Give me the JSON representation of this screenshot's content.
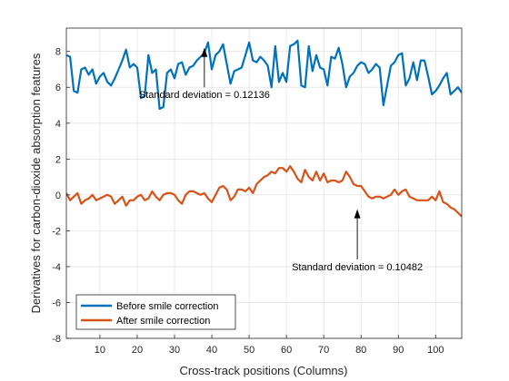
{
  "chart_data": {
    "type": "line",
    "title": "",
    "xlabel": "Cross-track positions (Columns)",
    "ylabel": "Derivatives for carbon-dioxide absorption features",
    "xlim": [
      1,
      107
    ],
    "ylim": [
      -8,
      9.3
    ],
    "xticks": [
      10,
      20,
      30,
      40,
      50,
      60,
      70,
      80,
      90,
      100
    ],
    "yticks": [
      -8,
      -6,
      -4,
      -2,
      0,
      2,
      4,
      6,
      8
    ],
    "grid": true,
    "legend_position": "bottom-left",
    "series": [
      {
        "name": "Before smile correction",
        "color": "#0072BD",
        "x": [
          1,
          2,
          3,
          4,
          5,
          6,
          7,
          8,
          9,
          10,
          11,
          12,
          13,
          14,
          15,
          16,
          17,
          18,
          19,
          20,
          21,
          22,
          23,
          24,
          25,
          26,
          27,
          28,
          29,
          30,
          31,
          32,
          33,
          34,
          35,
          36,
          37,
          38,
          39,
          40,
          41,
          42,
          43,
          44,
          45,
          46,
          47,
          48,
          49,
          50,
          51,
          52,
          53,
          54,
          55,
          56,
          57,
          58,
          59,
          60,
          61,
          62,
          63,
          64,
          65,
          66,
          67,
          68,
          69,
          70,
          71,
          72,
          73,
          74,
          75,
          76,
          77,
          78,
          79,
          80,
          81,
          82,
          83,
          84,
          85,
          86,
          87,
          88,
          89,
          90,
          91,
          92,
          93,
          94,
          95,
          96,
          97,
          98,
          99,
          100,
          101,
          102,
          103,
          104,
          105,
          106,
          107
        ],
        "y": [
          7.8,
          7.7,
          5.8,
          5.7,
          7.0,
          7.1,
          6.7,
          7.0,
          6.2,
          6.6,
          6.8,
          6.3,
          6.1,
          6.5,
          7.0,
          7.5,
          8.1,
          7.1,
          7.3,
          7.1,
          5.4,
          5.5,
          7.8,
          6.8,
          7.0,
          4.8,
          4.9,
          6.8,
          7.0,
          6.5,
          7.3,
          7.4,
          6.7,
          7.1,
          7.2,
          7.5,
          7.7,
          7.9,
          8.5,
          7.0,
          7.8,
          8.0,
          8.4,
          7.3,
          6.2,
          6.9,
          7.0,
          7.1,
          7.8,
          8.5,
          7.5,
          7.4,
          7.7,
          7.5,
          7.2,
          6.0,
          8.3,
          6.3,
          6.8,
          6.3,
          8.3,
          8.4,
          8.6,
          6.1,
          6.0,
          8.3,
          6.9,
          7.8,
          7.1,
          7.0,
          6.1,
          7.7,
          7.6,
          8.2,
          7.3,
          6.0,
          6.6,
          6.8,
          7.2,
          7.4,
          7.3,
          6.8,
          7.0,
          7.3,
          7.1,
          5.0,
          6.1,
          7.2,
          7.4,
          7.8,
          7.9,
          6.1,
          6.5,
          7.4,
          6.4,
          7.5,
          7.5,
          6.6,
          5.6,
          5.8,
          6.1,
          6.5,
          6.8,
          5.6,
          5.8,
          6.0,
          5.7
        ]
      },
      {
        "name": "After smile correction",
        "color": "#D95319",
        "x": [
          1,
          2,
          3,
          4,
          5,
          6,
          7,
          8,
          9,
          10,
          11,
          12,
          13,
          14,
          15,
          16,
          17,
          18,
          19,
          20,
          21,
          22,
          23,
          24,
          25,
          26,
          27,
          28,
          29,
          30,
          31,
          32,
          33,
          34,
          35,
          36,
          37,
          38,
          39,
          40,
          41,
          42,
          43,
          44,
          45,
          46,
          47,
          48,
          49,
          50,
          51,
          52,
          53,
          54,
          55,
          56,
          57,
          58,
          59,
          60,
          61,
          62,
          63,
          64,
          65,
          66,
          67,
          68,
          69,
          70,
          71,
          72,
          73,
          74,
          75,
          76,
          77,
          78,
          79,
          80,
          81,
          82,
          83,
          84,
          85,
          86,
          87,
          88,
          89,
          90,
          91,
          92,
          93,
          94,
          95,
          96,
          97,
          98,
          99,
          100,
          101,
          102,
          103,
          104,
          105,
          106,
          107
        ],
        "y": [
          0.1,
          -0.3,
          -0.1,
          0.1,
          -0.5,
          -0.3,
          -0.2,
          0.0,
          -0.3,
          -0.2,
          -0.1,
          0.0,
          -0.1,
          -0.5,
          -0.3,
          -0.1,
          -0.6,
          -0.3,
          -0.3,
          -0.1,
          0.0,
          -0.3,
          -0.2,
          0.2,
          -0.1,
          -0.3,
          0.0,
          0.1,
          0.1,
          0.0,
          -0.3,
          -0.5,
          0.0,
          0.2,
          0.2,
          0.1,
          0.0,
          0.1,
          -0.2,
          -0.4,
          0.0,
          0.4,
          0.5,
          0.3,
          -0.3,
          -0.1,
          0.3,
          0.3,
          0.2,
          0.4,
          0.1,
          0.6,
          0.8,
          1.0,
          1.1,
          1.3,
          1.2,
          1.5,
          1.5,
          1.3,
          1.6,
          1.3,
          0.9,
          0.7,
          1.4,
          1.0,
          0.8,
          1.3,
          0.8,
          1.2,
          0.7,
          0.8,
          0.8,
          0.7,
          0.8,
          1.3,
          1.0,
          0.6,
          0.5,
          0.5,
          0.2,
          -0.1,
          -0.2,
          -0.1,
          -0.1,
          -0.2,
          -0.1,
          0.0,
          0.3,
          0.0,
          0.2,
          0.3,
          -0.1,
          -0.2,
          -0.3,
          -0.3,
          -0.3,
          -0.3,
          -0.1,
          -0.3,
          0.2,
          -0.4,
          -0.5,
          -0.7,
          -0.8,
          -1.0,
          -1.2
        ]
      }
    ],
    "annotations": [
      {
        "text": "Standard deviation = 0.12136",
        "arrow_x": 38,
        "arrow_tail_y": 6.0,
        "arrow_head_y": 8.2
      },
      {
        "text": "Standard deviation = 0.10482",
        "arrow_x": 79,
        "arrow_tail_y": -3.6,
        "arrow_head_y": -0.8
      }
    ]
  }
}
